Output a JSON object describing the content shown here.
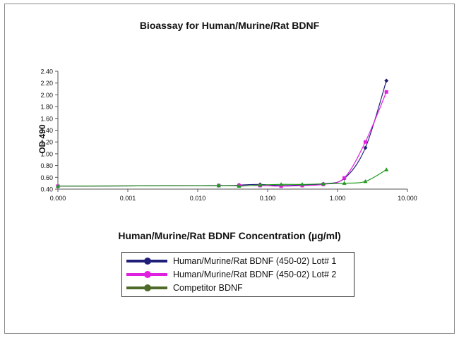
{
  "chart_data": {
    "type": "line",
    "title": "Bioassay for Human/Murine/Rat BDNF",
    "xlabel": "Human/Murine/Rat BDNF Concentration (µg/ml)",
    "ylabel": "OD 490",
    "x_scale": "log",
    "x_ticks": [
      "0.000",
      "0.001",
      "0.010",
      "0.100",
      "1.000",
      "10.000"
    ],
    "y_ticks": [
      "0.40",
      "0.60",
      "0.80",
      "1.00",
      "1.20",
      "1.40",
      "1.60",
      "1.80",
      "2.00",
      "2.20",
      "2.40"
    ],
    "ylim": [
      0.4,
      2.4
    ],
    "legend_position": "bottom",
    "series": [
      {
        "name": "Human/Murine/Rat BDNF (450-02) Lot# 1",
        "color": "#1f1f7a",
        "marker": "diamond",
        "x": [
          0.0001,
          0.02,
          0.039,
          0.078,
          0.156,
          0.3125,
          0.625,
          1.25,
          2.5,
          5.0
        ],
        "y": [
          0.45,
          0.46,
          0.47,
          0.48,
          0.46,
          0.47,
          0.49,
          0.58,
          1.1,
          2.24
        ]
      },
      {
        "name": "Human/Murine/Rat BDNF (450-02) Lot# 2",
        "color": "#e020e0",
        "marker": "square",
        "x": [
          0.0001,
          0.02,
          0.039,
          0.078,
          0.156,
          0.3125,
          0.625,
          1.25,
          2.5,
          5.0
        ],
        "y": [
          0.45,
          0.46,
          0.46,
          0.46,
          0.45,
          0.46,
          0.48,
          0.59,
          1.2,
          2.05
        ]
      },
      {
        "name": "Competitor BDNF",
        "color": "#1e9a1e",
        "legend_color": "#4f6b2a",
        "marker": "triangle",
        "x": [
          0.0001,
          0.02,
          0.039,
          0.078,
          0.156,
          0.3125,
          0.625,
          1.25,
          2.5,
          5.0
        ],
        "y": [
          0.45,
          0.46,
          0.45,
          0.47,
          0.48,
          0.48,
          0.49,
          0.5,
          0.53,
          0.73
        ]
      }
    ]
  }
}
